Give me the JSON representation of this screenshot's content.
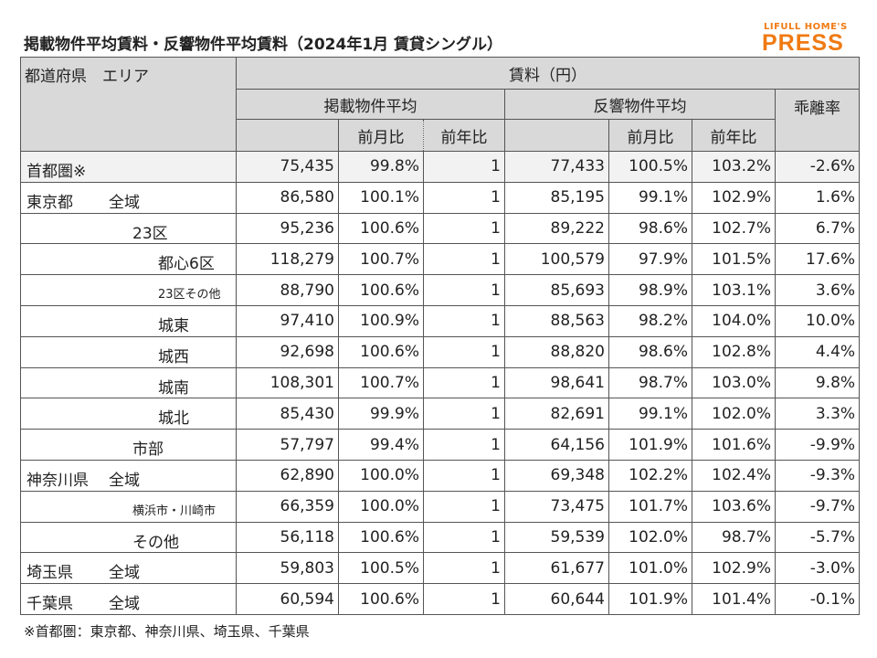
{
  "title": "掲載物件平均賃料・反響物件平均賃料（2024年1月 賃貸シングル）",
  "logo": {
    "top": "LIFULL HOME'S",
    "bottom": "PRESS"
  },
  "table": {
    "header": {
      "area": "都道府県　エリア",
      "rent": "賃料（円）",
      "listing": "掲載物件平均",
      "response": "反響物件平均",
      "mom": "前月比",
      "yoy": "前年比",
      "gap": "乖離率"
    },
    "rows": [
      {
        "pref": "首都圏※",
        "listing": "75,435",
        "listing_mom": "99.8%",
        "listing_yoy": "1",
        "response": "77,433",
        "response_mom": "100.5%",
        "response_yoy": "103.2%",
        "gap": "-2.6%"
      },
      {
        "pref": "東京都",
        "area": "全域",
        "listing": "86,580",
        "listing_mom": "100.1%",
        "listing_yoy": "1",
        "response": "85,195",
        "response_mom": "99.1%",
        "response_yoy": "102.9%",
        "gap": "1.6%"
      },
      {
        "area": "23区",
        "listing": "95,236",
        "listing_mom": "100.6%",
        "listing_yoy": "1",
        "response": "89,222",
        "response_mom": "98.6%",
        "response_yoy": "102.7%",
        "gap": "6.7%"
      },
      {
        "area": "都心6区",
        "listing": "118,279",
        "listing_mom": "100.7%",
        "listing_yoy": "1",
        "response": "100,579",
        "response_mom": "97.9%",
        "response_yoy": "101.5%",
        "gap": "17.6%"
      },
      {
        "area": "23区その他",
        "listing": "88,790",
        "listing_mom": "100.6%",
        "listing_yoy": "1",
        "response": "85,693",
        "response_mom": "98.9%",
        "response_yoy": "103.1%",
        "gap": "3.6%"
      },
      {
        "area": "城東",
        "listing": "97,410",
        "listing_mom": "100.9%",
        "listing_yoy": "1",
        "response": "88,563",
        "response_mom": "98.2%",
        "response_yoy": "104.0%",
        "gap": "10.0%"
      },
      {
        "area": "城西",
        "listing": "92,698",
        "listing_mom": "100.6%",
        "listing_yoy": "1",
        "response": "88,820",
        "response_mom": "98.6%",
        "response_yoy": "102.8%",
        "gap": "4.4%"
      },
      {
        "area": "城南",
        "listing": "108,301",
        "listing_mom": "100.7%",
        "listing_yoy": "1",
        "response": "98,641",
        "response_mom": "98.7%",
        "response_yoy": "103.0%",
        "gap": "9.8%"
      },
      {
        "area": "城北",
        "listing": "85,430",
        "listing_mom": "99.9%",
        "listing_yoy": "1",
        "response": "82,691",
        "response_mom": "99.1%",
        "response_yoy": "102.0%",
        "gap": "3.3%"
      },
      {
        "area": "市部",
        "listing": "57,797",
        "listing_mom": "99.4%",
        "listing_yoy": "1",
        "response": "64,156",
        "response_mom": "101.9%",
        "response_yoy": "101.6%",
        "gap": "-9.9%"
      },
      {
        "pref": "神奈川県",
        "area": "全域",
        "listing": "62,890",
        "listing_mom": "100.0%",
        "listing_yoy": "1",
        "response": "69,348",
        "response_mom": "102.2%",
        "response_yoy": "102.4%",
        "gap": "-9.3%"
      },
      {
        "area": "横浜市・川崎市",
        "listing": "66,359",
        "listing_mom": "100.0%",
        "listing_yoy": "1",
        "response": "73,475",
        "response_mom": "101.7%",
        "response_yoy": "103.6%",
        "gap": "-9.7%"
      },
      {
        "area": "その他",
        "listing": "56,118",
        "listing_mom": "100.6%",
        "listing_yoy": "1",
        "response": "59,539",
        "response_mom": "102.0%",
        "response_yoy": "98.7%",
        "gap": "-5.7%"
      },
      {
        "pref": "埼玉県",
        "area": "全域",
        "listing": "59,803",
        "listing_mom": "100.5%",
        "listing_yoy": "1",
        "response": "61,677",
        "response_mom": "101.0%",
        "response_yoy": "102.9%",
        "gap": "-3.0%"
      },
      {
        "pref": "千葉県",
        "area": "全域",
        "listing": "60,594",
        "listing_mom": "100.6%",
        "listing_yoy": "1",
        "response": "60,644",
        "response_mom": "101.9%",
        "response_yoy": "101.4%",
        "gap": "-0.1%"
      }
    ]
  },
  "footnote": "※首都圏：東京都、神奈川県、埼玉県、千葉県"
}
